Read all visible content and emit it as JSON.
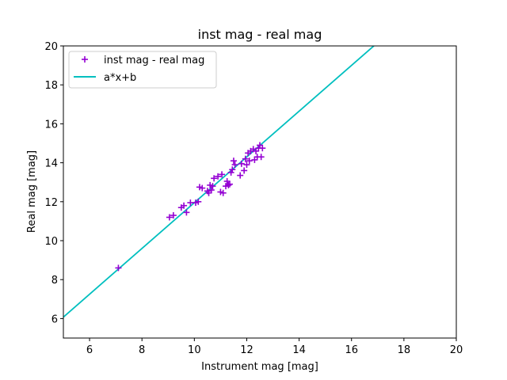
{
  "chart_data": {
    "type": "scatter",
    "title": "inst mag - real mag",
    "xlabel": "Instrument mag [mag]",
    "ylabel": "Real mag [mag]",
    "xlim": [
      5,
      20
    ],
    "ylim": [
      5,
      20
    ],
    "xticks": [
      "6",
      "8",
      "10",
      "12",
      "14",
      "16",
      "18",
      "20"
    ],
    "yticks": [
      "6",
      "8",
      "10",
      "12",
      "14",
      "16",
      "18",
      "20"
    ],
    "grid": false,
    "legend_position": "top-left",
    "series": [
      {
        "name": "inst mag - real mag",
        "kind": "scatter",
        "marker": "plus",
        "color": "#9400D3",
        "points": [
          [
            7.1,
            8.6
          ],
          [
            9.05,
            11.2
          ],
          [
            9.2,
            11.3
          ],
          [
            9.5,
            11.7
          ],
          [
            9.6,
            11.8
          ],
          [
            9.7,
            11.45
          ],
          [
            9.85,
            11.95
          ],
          [
            10.05,
            11.95
          ],
          [
            10.15,
            12.0
          ],
          [
            10.2,
            12.75
          ],
          [
            10.3,
            12.7
          ],
          [
            10.5,
            12.55
          ],
          [
            10.55,
            12.45
          ],
          [
            10.6,
            12.85
          ],
          [
            10.65,
            12.6
          ],
          [
            10.7,
            12.8
          ],
          [
            10.75,
            13.2
          ],
          [
            10.9,
            13.3
          ],
          [
            11.0,
            12.5
          ],
          [
            11.05,
            13.4
          ],
          [
            11.1,
            12.45
          ],
          [
            11.2,
            12.8
          ],
          [
            11.25,
            13.05
          ],
          [
            11.3,
            12.85
          ],
          [
            11.35,
            12.9
          ],
          [
            11.4,
            13.5
          ],
          [
            11.45,
            13.65
          ],
          [
            11.5,
            14.1
          ],
          [
            11.55,
            13.9
          ],
          [
            11.75,
            13.35
          ],
          [
            11.8,
            13.95
          ],
          [
            11.9,
            13.6
          ],
          [
            11.95,
            14.2
          ],
          [
            12.0,
            13.9
          ],
          [
            12.05,
            14.5
          ],
          [
            12.1,
            14.1
          ],
          [
            12.15,
            14.6
          ],
          [
            12.25,
            14.7
          ],
          [
            12.3,
            14.15
          ],
          [
            12.35,
            14.6
          ],
          [
            12.4,
            14.3
          ],
          [
            12.45,
            14.75
          ],
          [
            12.5,
            14.9
          ],
          [
            12.55,
            14.3
          ],
          [
            12.6,
            14.75
          ]
        ]
      },
      {
        "name": "a*x+b",
        "kind": "line",
        "color": "#00BFBF",
        "slope": 1.175,
        "intercept": 0.2
      }
    ]
  }
}
